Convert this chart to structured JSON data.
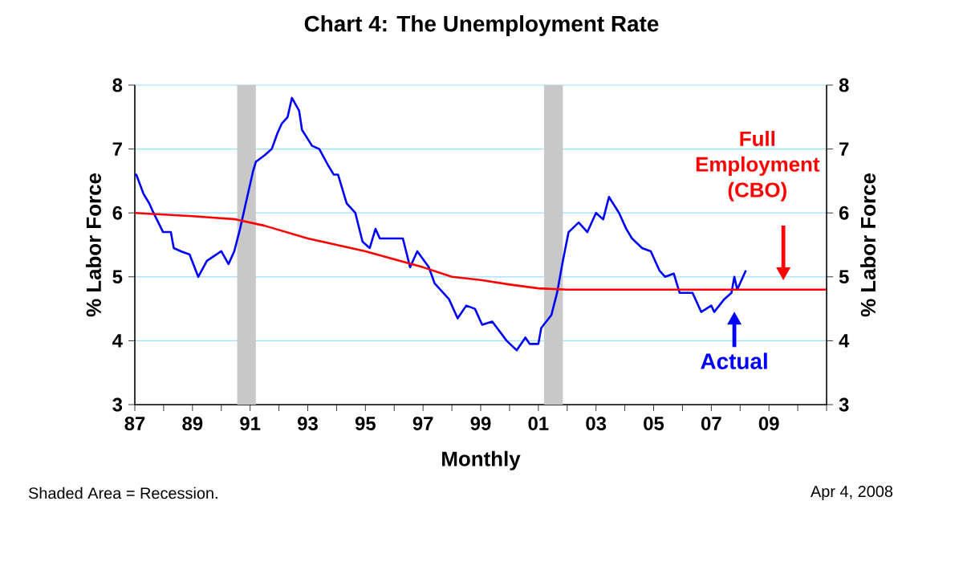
{
  "chart_data": {
    "type": "line",
    "title": "Chart 4: The Unemployment Rate",
    "xlabel": "Monthly",
    "ylabel": "% Labor Force",
    "y2label": "% Labor Force",
    "xlim": [
      1987,
      2011
    ],
    "xticks": [
      {
        "value": 1987,
        "label": "87"
      },
      {
        "value": 1988,
        "label": null
      },
      {
        "value": 1989,
        "label": "89"
      },
      {
        "value": 1990,
        "label": null
      },
      {
        "value": 1991,
        "label": "91"
      },
      {
        "value": 1992,
        "label": null
      },
      {
        "value": 1993,
        "label": "93"
      },
      {
        "value": 1994,
        "label": null
      },
      {
        "value": 1995,
        "label": "95"
      },
      {
        "value": 1996,
        "label": null
      },
      {
        "value": 1997,
        "label": "97"
      },
      {
        "value": 1998,
        "label": null
      },
      {
        "value": 1999,
        "label": "99"
      },
      {
        "value": 2000,
        "label": null
      },
      {
        "value": 2001,
        "label": "01"
      },
      {
        "value": 2002,
        "label": null
      },
      {
        "value": 2003,
        "label": "03"
      },
      {
        "value": 2004,
        "label": null
      },
      {
        "value": 2005,
        "label": "05"
      },
      {
        "value": 2006,
        "label": null
      },
      {
        "value": 2007,
        "label": "07"
      },
      {
        "value": 2008,
        "label": null
      },
      {
        "value": 2009,
        "label": "09"
      },
      {
        "value": 2010,
        "label": null
      },
      {
        "value": 2011,
        "label": null
      }
    ],
    "ylim": [
      3,
      8
    ],
    "yticks": [
      3,
      4,
      5,
      6,
      7,
      8
    ],
    "y2lim": [
      3,
      8
    ],
    "y2ticks": [
      3,
      4,
      5,
      6,
      7,
      8
    ],
    "grid": "y",
    "bands": [
      {
        "axis": "x",
        "from": 1990.55,
        "to": 1991.2,
        "color": "#c8c8c8"
      },
      {
        "axis": "x",
        "from": 2001.2,
        "to": 2001.85,
        "color": "#c8c8c8"
      }
    ],
    "series": [
      {
        "name": "Actual",
        "color": "#0000ff",
        "x": [
          1987.0,
          1987.05,
          1987.3,
          1987.5,
          1987.65,
          1987.98,
          1988.25,
          1988.35,
          1988.6,
          1988.9,
          1989.2,
          1989.5,
          1990.0,
          1990.25,
          1990.45,
          1990.65,
          1990.85,
          1991.1,
          1991.2,
          1991.5,
          1991.75,
          1991.95,
          1992.1,
          1992.3,
          1992.45,
          1992.7,
          1992.8,
          1993.15,
          1993.4,
          1993.7,
          1993.9,
          1994.05,
          1994.35,
          1994.65,
          1994.9,
          1995.15,
          1995.35,
          1995.5,
          1995.9,
          1996.3,
          1996.55,
          1996.8,
          1997.2,
          1997.4,
          1997.9,
          1998.2,
          1998.5,
          1998.8,
          1999.05,
          1999.4,
          1999.9,
          2000.25,
          2000.55,
          2000.7,
          2001.0,
          2001.1,
          2001.45,
          2001.65,
          2001.85,
          2002.05,
          2002.4,
          2002.7,
          2003.0,
          2003.25,
          2003.45,
          2003.8,
          2004.05,
          2004.25,
          2004.6,
          2004.9,
          2005.2,
          2005.4,
          2005.7,
          2005.9,
          2006.35,
          2006.65,
          2007.0,
          2007.1,
          2007.45,
          2007.7,
          2007.8,
          2007.9,
          2008.2
        ],
        "values": [
          6.6,
          6.6,
          6.3,
          6.15,
          6.0,
          5.7,
          5.7,
          5.45,
          5.4,
          5.35,
          5.0,
          5.25,
          5.4,
          5.2,
          5.4,
          5.75,
          6.15,
          6.65,
          6.8,
          6.9,
          7.0,
          7.25,
          7.4,
          7.5,
          7.8,
          7.6,
          7.3,
          7.05,
          7.0,
          6.75,
          6.6,
          6.6,
          6.15,
          6.0,
          5.55,
          5.45,
          5.75,
          5.6,
          5.6,
          5.6,
          5.15,
          5.4,
          5.15,
          4.9,
          4.65,
          4.35,
          4.55,
          4.5,
          4.25,
          4.3,
          4.0,
          3.85,
          4.05,
          3.95,
          3.95,
          4.2,
          4.4,
          4.75,
          5.25,
          5.7,
          5.85,
          5.7,
          6.0,
          5.9,
          6.25,
          6.0,
          5.75,
          5.6,
          5.45,
          5.4,
          5.1,
          5.0,
          5.05,
          4.75,
          4.75,
          4.45,
          4.55,
          4.45,
          4.65,
          4.75,
          5.0,
          4.8,
          5.1
        ]
      },
      {
        "name": "Full Employment (CBO)",
        "color": "#ff0000",
        "x": [
          1987,
          1989,
          1990.5,
          1991.5,
          1993,
          1995,
          1997,
          1998,
          1999,
          2000,
          2001,
          2002,
          2011
        ],
        "values": [
          6.0,
          5.95,
          5.9,
          5.8,
          5.6,
          5.4,
          5.15,
          5.0,
          4.95,
          4.88,
          4.82,
          4.8,
          4.8
        ]
      }
    ],
    "annotations": [
      "Shaded Area = Recession.",
      "Apr 4, 2008"
    ]
  }
}
